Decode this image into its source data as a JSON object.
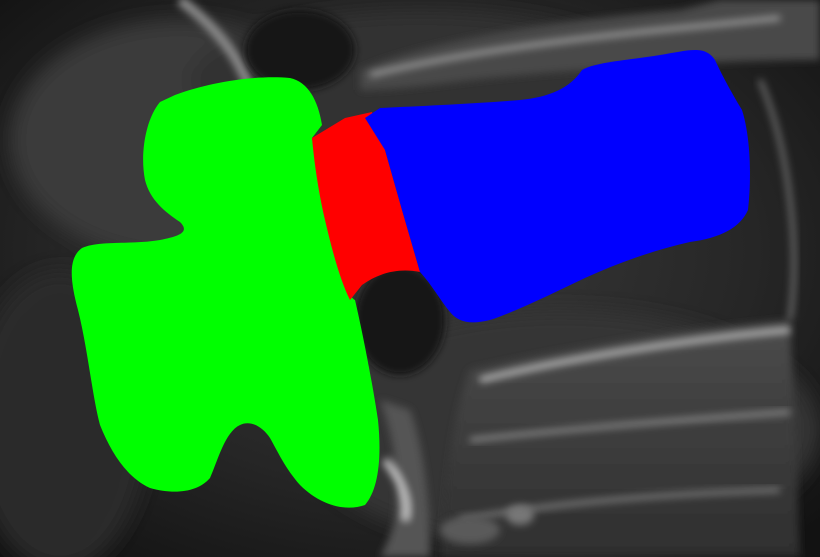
{
  "image": {
    "kind": "ct-sagittal-spine-segmentation",
    "background_colors": {
      "base": "#1b1b1b",
      "bone": "#8a8a8a",
      "bone_bright": "#bdbdbd",
      "soft_tissue": "#3a3a3a"
    }
  },
  "segmentation": {
    "masks": [
      {
        "id": "posterior-element",
        "color": "#00ff00"
      },
      {
        "id": "pedicle",
        "color": "#ff0000"
      },
      {
        "id": "vertebral-body",
        "color": "#0000ff"
      }
    ]
  }
}
